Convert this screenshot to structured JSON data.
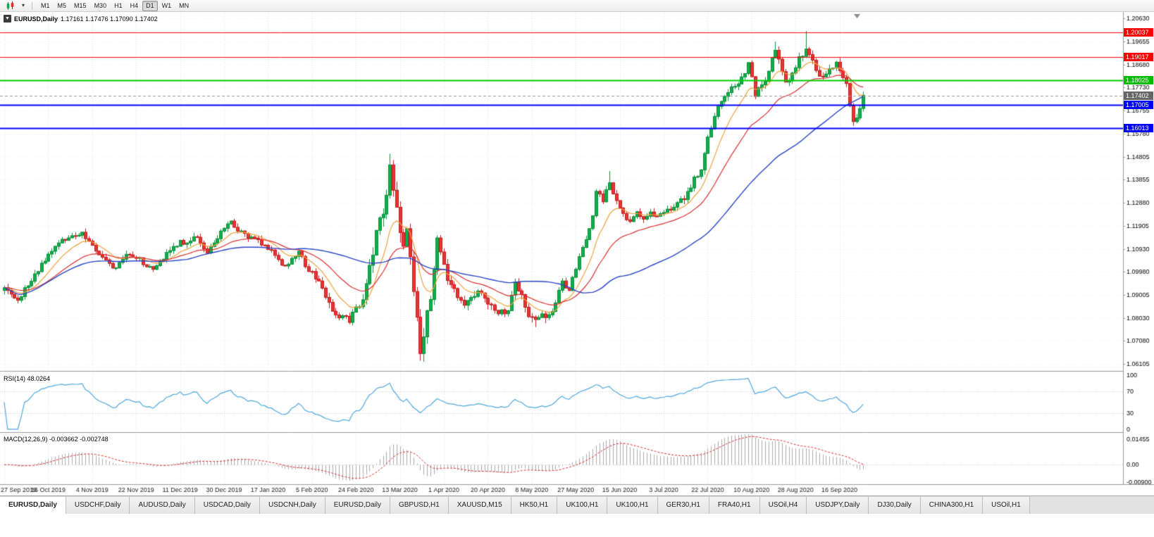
{
  "toolbar": {
    "chart_type_icon": "candlestick-chart",
    "dropdown_icon": "▾",
    "timeframes": [
      "M1",
      "M5",
      "M15",
      "M30",
      "H1",
      "H4",
      "D1",
      "W1",
      "MN"
    ],
    "active_timeframe": "D1"
  },
  "chart": {
    "title": {
      "collapse_icon": "▼",
      "symbol": "EURUSD,Daily",
      "ohlc": "1.17161 1.17476 1.17090 1.17402"
    },
    "price_axis": {
      "ticks": [
        "1.20630",
        "1.19655",
        "1.18680",
        "1.17730",
        "1.16755",
        "1.15780",
        "1.14805",
        "1.13855",
        "1.12880",
        "1.11905",
        "1.10930",
        "1.09980",
        "1.09005",
        "1.08030",
        "1.07080",
        "1.06105"
      ]
    },
    "current_price_tag": {
      "price": "1.17402",
      "bg": "#666666"
    },
    "sr_tags": [
      {
        "price": "1.20037",
        "bg": "#FF0000"
      },
      {
        "price": "1.19017",
        "bg": "#FF0000"
      },
      {
        "price": "1.18025",
        "bg": "#00BB00"
      },
      {
        "price": "1.17005",
        "bg": "#0000FF"
      },
      {
        "price": "1.16013",
        "bg": "#0000FF"
      }
    ],
    "dates": [
      "27 Sep 2019",
      "16 Oct 2019",
      "4 Nov 2019",
      "22 Nov 2019",
      "11 Dec 2019",
      "30 Dec 2019",
      "17 Jan 2020",
      "5 Feb 2020",
      "24 Feb 2020",
      "13 Mar 2020",
      "1 Apr 2020",
      "20 Apr 2020",
      "8 May 2020",
      "27 May 2020",
      "15 Jun 2020",
      "3 Jul 2020",
      "22 Jul 2020",
      "10 Aug 2020",
      "28 Aug 2020",
      "16 Sep 2020"
    ]
  },
  "rsi": {
    "label": "RSI(14)",
    "value": "48.0264",
    "axis_ticks": [
      "100",
      "70",
      "30",
      "0"
    ],
    "levels": [
      70,
      30
    ]
  },
  "macd": {
    "label": "MACD(12,26,9)",
    "values": "-0.003662 -0.002748",
    "axis_ticks": [
      "0.01455",
      "0.00",
      "-0.00900"
    ]
  },
  "tabs": [
    "EURUSD,Daily",
    "USDCHF,Daily",
    "AUDUSD,Daily",
    "USDCAD,Daily",
    "USDCNH,Daily",
    "EURUSD,Daily",
    "GBPUSD,H1",
    "XAUUSD,M15",
    "HK50,H1",
    "UK100,H1",
    "UK100,H1",
    "GER30,H1",
    "FRA40,H1",
    "USOil,H4",
    "USDJPY,Daily",
    "DJ30,Daily",
    "CHINA300,H1",
    "USOil,H1"
  ],
  "active_tab": 0,
  "colors": {
    "candle_up": "#10AE4B",
    "candle_up_border": "#0B8F3C",
    "candle_down": "#E93434",
    "candle_down_border": "#C31D1D",
    "rsi_line": "#4FA8E0",
    "macd_hist": "#ABABAB",
    "macd_signal": "#E03030",
    "grid": "#E3E3E3"
  },
  "chart_data": {
    "type": "candlestick",
    "symbol": "EURUSD",
    "timeframe": "Daily",
    "open": "1.17161",
    "high": "1.17476",
    "low": "1.17090",
    "close": "1.17402",
    "ylim": [
      1.0585,
      1.2085
    ],
    "bar_count": 255,
    "horizontal_levels": [
      {
        "price": 1.20037,
        "color": "#FF0000",
        "width": 1
      },
      {
        "price": 1.19017,
        "color": "#FF0000",
        "width": 1
      },
      {
        "price": 1.18025,
        "color": "#00CC00",
        "width": 2
      },
      {
        "price": 1.17005,
        "color": "#0000FF",
        "width": 2
      },
      {
        "price": 1.16013,
        "color": "#0000FF",
        "width": 2
      }
    ],
    "close_anchors": [
      [
        0,
        1.0932
      ],
      [
        2,
        1.0905
      ],
      [
        4,
        1.0879
      ],
      [
        6,
        1.0932
      ],
      [
        9,
        1.099
      ],
      [
        11,
        1.1035
      ],
      [
        13,
        1.1073
      ],
      [
        16,
        1.112
      ],
      [
        18,
        1.1131
      ],
      [
        21,
        1.115
      ],
      [
        23,
        1.1165
      ],
      [
        25,
        1.1128
      ],
      [
        28,
        1.107
      ],
      [
        31,
        1.1034
      ],
      [
        33,
        1.1015
      ],
      [
        36,
        1.1072
      ],
      [
        38,
        1.106
      ],
      [
        40,
        1.1058
      ],
      [
        42,
        1.102
      ],
      [
        44,
        1.1009
      ],
      [
        46,
        1.1045
      ],
      [
        48,
        1.108
      ],
      [
        50,
        1.1105
      ],
      [
        52,
        1.1131
      ],
      [
        54,
        1.112
      ],
      [
        56,
        1.1146
      ],
      [
        58,
        1.112
      ],
      [
        60,
        1.1078
      ],
      [
        62,
        1.112
      ],
      [
        64,
        1.117
      ],
      [
        66,
        1.12
      ],
      [
        67,
        1.1212
      ],
      [
        69,
        1.117
      ],
      [
        71,
        1.116
      ],
      [
        73,
        1.1145
      ],
      [
        75,
        1.1134
      ],
      [
        77,
        1.111
      ],
      [
        79,
        1.109
      ],
      [
        81,
        1.105
      ],
      [
        83,
        1.1023
      ],
      [
        85,
        1.1055
      ],
      [
        87,
        1.1085
      ],
      [
        89,
        1.102
      ],
      [
        91,
        1.1
      ],
      [
        94,
        1.093
      ],
      [
        96,
        1.087
      ],
      [
        99,
        1.0805
      ],
      [
        102,
        1.0786
      ],
      [
        104,
        1.0851
      ],
      [
        106,
        1.0881
      ],
      [
        108,
        1.1026
      ],
      [
        110,
        1.1173
      ],
      [
        112,
        1.1241
      ],
      [
        114,
        1.1448
      ],
      [
        116,
        1.127
      ],
      [
        118,
        1.1106
      ],
      [
        119,
        1.118
      ],
      [
        121,
        1.0916
      ],
      [
        123,
        1.0655
      ],
      [
        124,
        1.0725
      ],
      [
        126,
        1.0882
      ],
      [
        128,
        1.1141
      ],
      [
        130,
        1.103
      ],
      [
        131,
        1.0962
      ],
      [
        134,
        1.089
      ],
      [
        136,
        1.0858
      ],
      [
        139,
        1.0895
      ],
      [
        141,
        1.091
      ],
      [
        143,
        1.0863
      ],
      [
        146,
        1.0822
      ],
      [
        149,
        1.0835
      ],
      [
        151,
        1.0955
      ],
      [
        153,
        1.0903
      ],
      [
        155,
        1.081
      ],
      [
        157,
        1.0798
      ],
      [
        159,
        1.0822
      ],
      [
        161,
        1.0818
      ],
      [
        163,
        1.0868
      ],
      [
        165,
        1.096
      ],
      [
        167,
        1.092
      ],
      [
        169,
        1.1009
      ],
      [
        171,
        1.1101
      ],
      [
        172,
        1.1134
      ],
      [
        174,
        1.1234
      ],
      [
        175,
        1.1337
      ],
      [
        177,
        1.1293
      ],
      [
        179,
        1.1373
      ],
      [
        181,
        1.1298
      ],
      [
        183,
        1.1244
      ],
      [
        185,
        1.121
      ],
      [
        187,
        1.1251
      ],
      [
        189,
        1.122
      ],
      [
        191,
        1.125
      ],
      [
        193,
        1.1232
      ],
      [
        195,
        1.1248
      ],
      [
        198,
        1.127
      ],
      [
        201,
        1.1302
      ],
      [
        204,
        1.1397
      ],
      [
        206,
        1.1427
      ],
      [
        208,
        1.1565
      ],
      [
        210,
        1.1652
      ],
      [
        212,
        1.1715
      ],
      [
        214,
        1.1752
      ],
      [
        216,
        1.1778
      ],
      [
        217,
        1.1788
      ],
      [
        219,
        1.1832
      ],
      [
        220,
        1.1878
      ],
      [
        222,
        1.1736
      ],
      [
        224,
        1.1785
      ],
      [
        226,
        1.1842
      ],
      [
        228,
        1.193
      ],
      [
        230,
        1.184
      ],
      [
        231,
        1.1796
      ],
      [
        233,
        1.1834
      ],
      [
        235,
        1.1903
      ],
      [
        237,
        1.1935
      ],
      [
        238,
        1.1912
      ],
      [
        240,
        1.1845
      ],
      [
        242,
        1.1818
      ],
      [
        244,
        1.1852
      ],
      [
        246,
        1.188
      ],
      [
        248,
        1.1815
      ],
      [
        249,
        1.179
      ],
      [
        251,
        1.163
      ],
      [
        252,
        1.1645
      ],
      [
        253,
        1.1685
      ],
      [
        254,
        1.174
      ]
    ],
    "extreme_highs": {
      "114": 1.1495,
      "179": 1.1422,
      "228": 1.1966,
      "237": 1.2011
    },
    "extreme_lows": {
      "102": 1.0778,
      "123": 1.0636,
      "157": 1.0766,
      "251": 1.1612
    },
    "vol_zones": [
      [
        108,
        126,
        2.6
      ],
      [
        96,
        107,
        1.5
      ],
      [
        127,
        160,
        1.4
      ],
      [
        200,
        254,
        1.2
      ]
    ],
    "noise_seed": 13,
    "moving_averages": [
      {
        "name": "fast",
        "type": "ema",
        "period": 10,
        "color": "#F0A23C"
      },
      {
        "name": "mid",
        "type": "ema",
        "period": 25,
        "color": "#E03030"
      },
      {
        "name": "slow",
        "type": "sma",
        "period": 55,
        "color": "#2A46C8"
      }
    ],
    "indicators": {
      "rsi_period": 14,
      "macd": [
        12,
        26,
        9
      ]
    },
    "rsi_final": 48.0264,
    "macd_ylim": [
      -0.009,
      0.01455
    ]
  }
}
